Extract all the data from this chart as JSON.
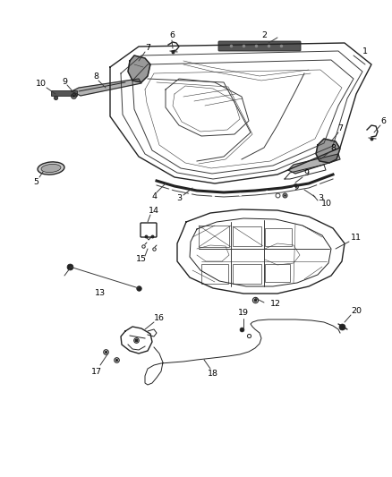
{
  "bg_color": "#ffffff",
  "lc": "#3a3a3a",
  "lc2": "#222222",
  "figsize": [
    4.38,
    5.33
  ],
  "dpi": 100,
  "label_fs": 6.8,
  "xlim": [
    0,
    438
  ],
  "ylim": [
    0,
    533
  ]
}
